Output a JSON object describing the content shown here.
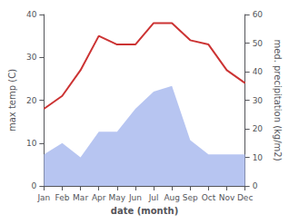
{
  "chart_data": {
    "type": "line",
    "categories": [
      "Jan",
      "Feb",
      "Mar",
      "Apr",
      "May",
      "Jun",
      "Jul",
      "Aug",
      "Sep",
      "Oct",
      "Nov",
      "Dec"
    ],
    "xlabel": "date (month)",
    "ylabel": "max temp (C)",
    "y2label": "med. precipitation (kg/m2)",
    "ylim": [
      0,
      40
    ],
    "yticks": [
      0,
      10,
      20,
      30,
      40
    ],
    "y2lim": [
      0,
      60
    ],
    "y2ticks": [
      0,
      10,
      20,
      30,
      40,
      50,
      60
    ],
    "grid": false,
    "series": [
      {
        "type": "area",
        "color": "#aabbee",
        "axis": "y2",
        "values": [
          11,
          15,
          10,
          19,
          19,
          27,
          33,
          35,
          16,
          11,
          11,
          11
        ]
      },
      {
        "type": "line",
        "color": "#cc3333",
        "values": [
          18,
          21,
          27,
          35,
          33,
          33,
          38,
          38,
          34,
          33,
          27,
          24
        ]
      }
    ]
  }
}
